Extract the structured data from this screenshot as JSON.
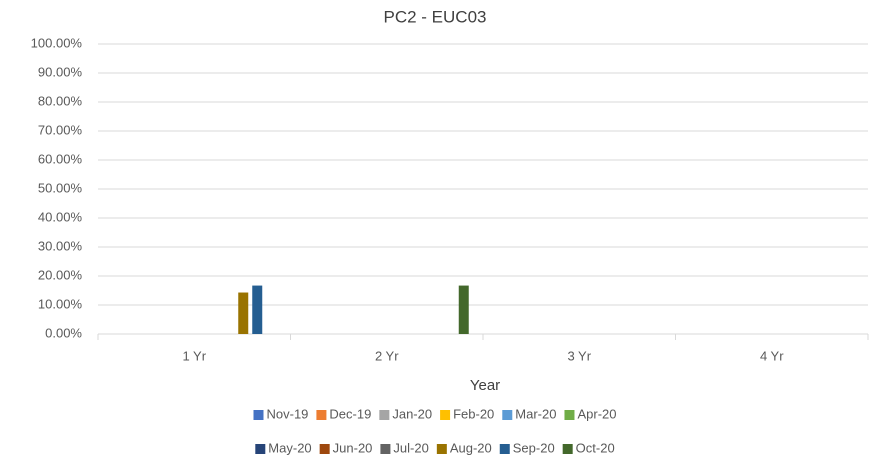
{
  "chart_data": {
    "type": "bar",
    "title": "PC2 - EUC03",
    "x_label": "Year",
    "categories": [
      "1 Yr",
      "2 Yr",
      "3 Yr",
      "4 Yr"
    ],
    "series": [
      {
        "name": "Nov-19",
        "color": "#4472c4",
        "values": [
          null,
          null,
          null,
          null
        ]
      },
      {
        "name": "Dec-19",
        "color": "#ed7d31",
        "values": [
          null,
          null,
          null,
          null
        ]
      },
      {
        "name": "Jan-20",
        "color": "#a5a5a5",
        "values": [
          null,
          null,
          null,
          null
        ]
      },
      {
        "name": "Feb-20",
        "color": "#ffc000",
        "values": [
          null,
          null,
          null,
          null
        ]
      },
      {
        "name": "Mar-20",
        "color": "#5b9bd5",
        "values": [
          null,
          null,
          null,
          null
        ]
      },
      {
        "name": "Apr-20",
        "color": "#70ad47",
        "values": [
          null,
          null,
          null,
          null
        ]
      },
      {
        "name": "May-20",
        "color": "#264478",
        "values": [
          null,
          null,
          null,
          null
        ]
      },
      {
        "name": "Jun-20",
        "color": "#9e480e",
        "values": [
          null,
          null,
          null,
          null
        ]
      },
      {
        "name": "Jul-20",
        "color": "#636363",
        "values": [
          null,
          null,
          null,
          null
        ]
      },
      {
        "name": "Aug-20",
        "color": "#997300",
        "values": [
          14.3,
          null,
          null,
          null
        ]
      },
      {
        "name": "Sep-20",
        "color": "#255e91",
        "values": [
          16.7,
          null,
          null,
          null
        ]
      },
      {
        "name": "Oct-20",
        "color": "#43682b",
        "values": [
          null,
          16.7,
          null,
          null
        ]
      }
    ],
    "ylim": [
      0,
      100
    ],
    "yticks": [
      {
        "value": 0,
        "label": "0.00%"
      },
      {
        "value": 10,
        "label": "10.00%"
      },
      {
        "value": 20,
        "label": "20.00%"
      },
      {
        "value": 30,
        "label": "30.00%"
      },
      {
        "value": 40,
        "label": "40.00%"
      },
      {
        "value": 50,
        "label": "50.00%"
      },
      {
        "value": 60,
        "label": "60.00%"
      },
      {
        "value": 70,
        "label": "70.00%"
      },
      {
        "value": 80,
        "label": "80.00%"
      },
      {
        "value": 90,
        "label": "90.00%"
      },
      {
        "value": 100,
        "label": "100.00%"
      }
    ],
    "grid": true,
    "legend": "bottom"
  }
}
